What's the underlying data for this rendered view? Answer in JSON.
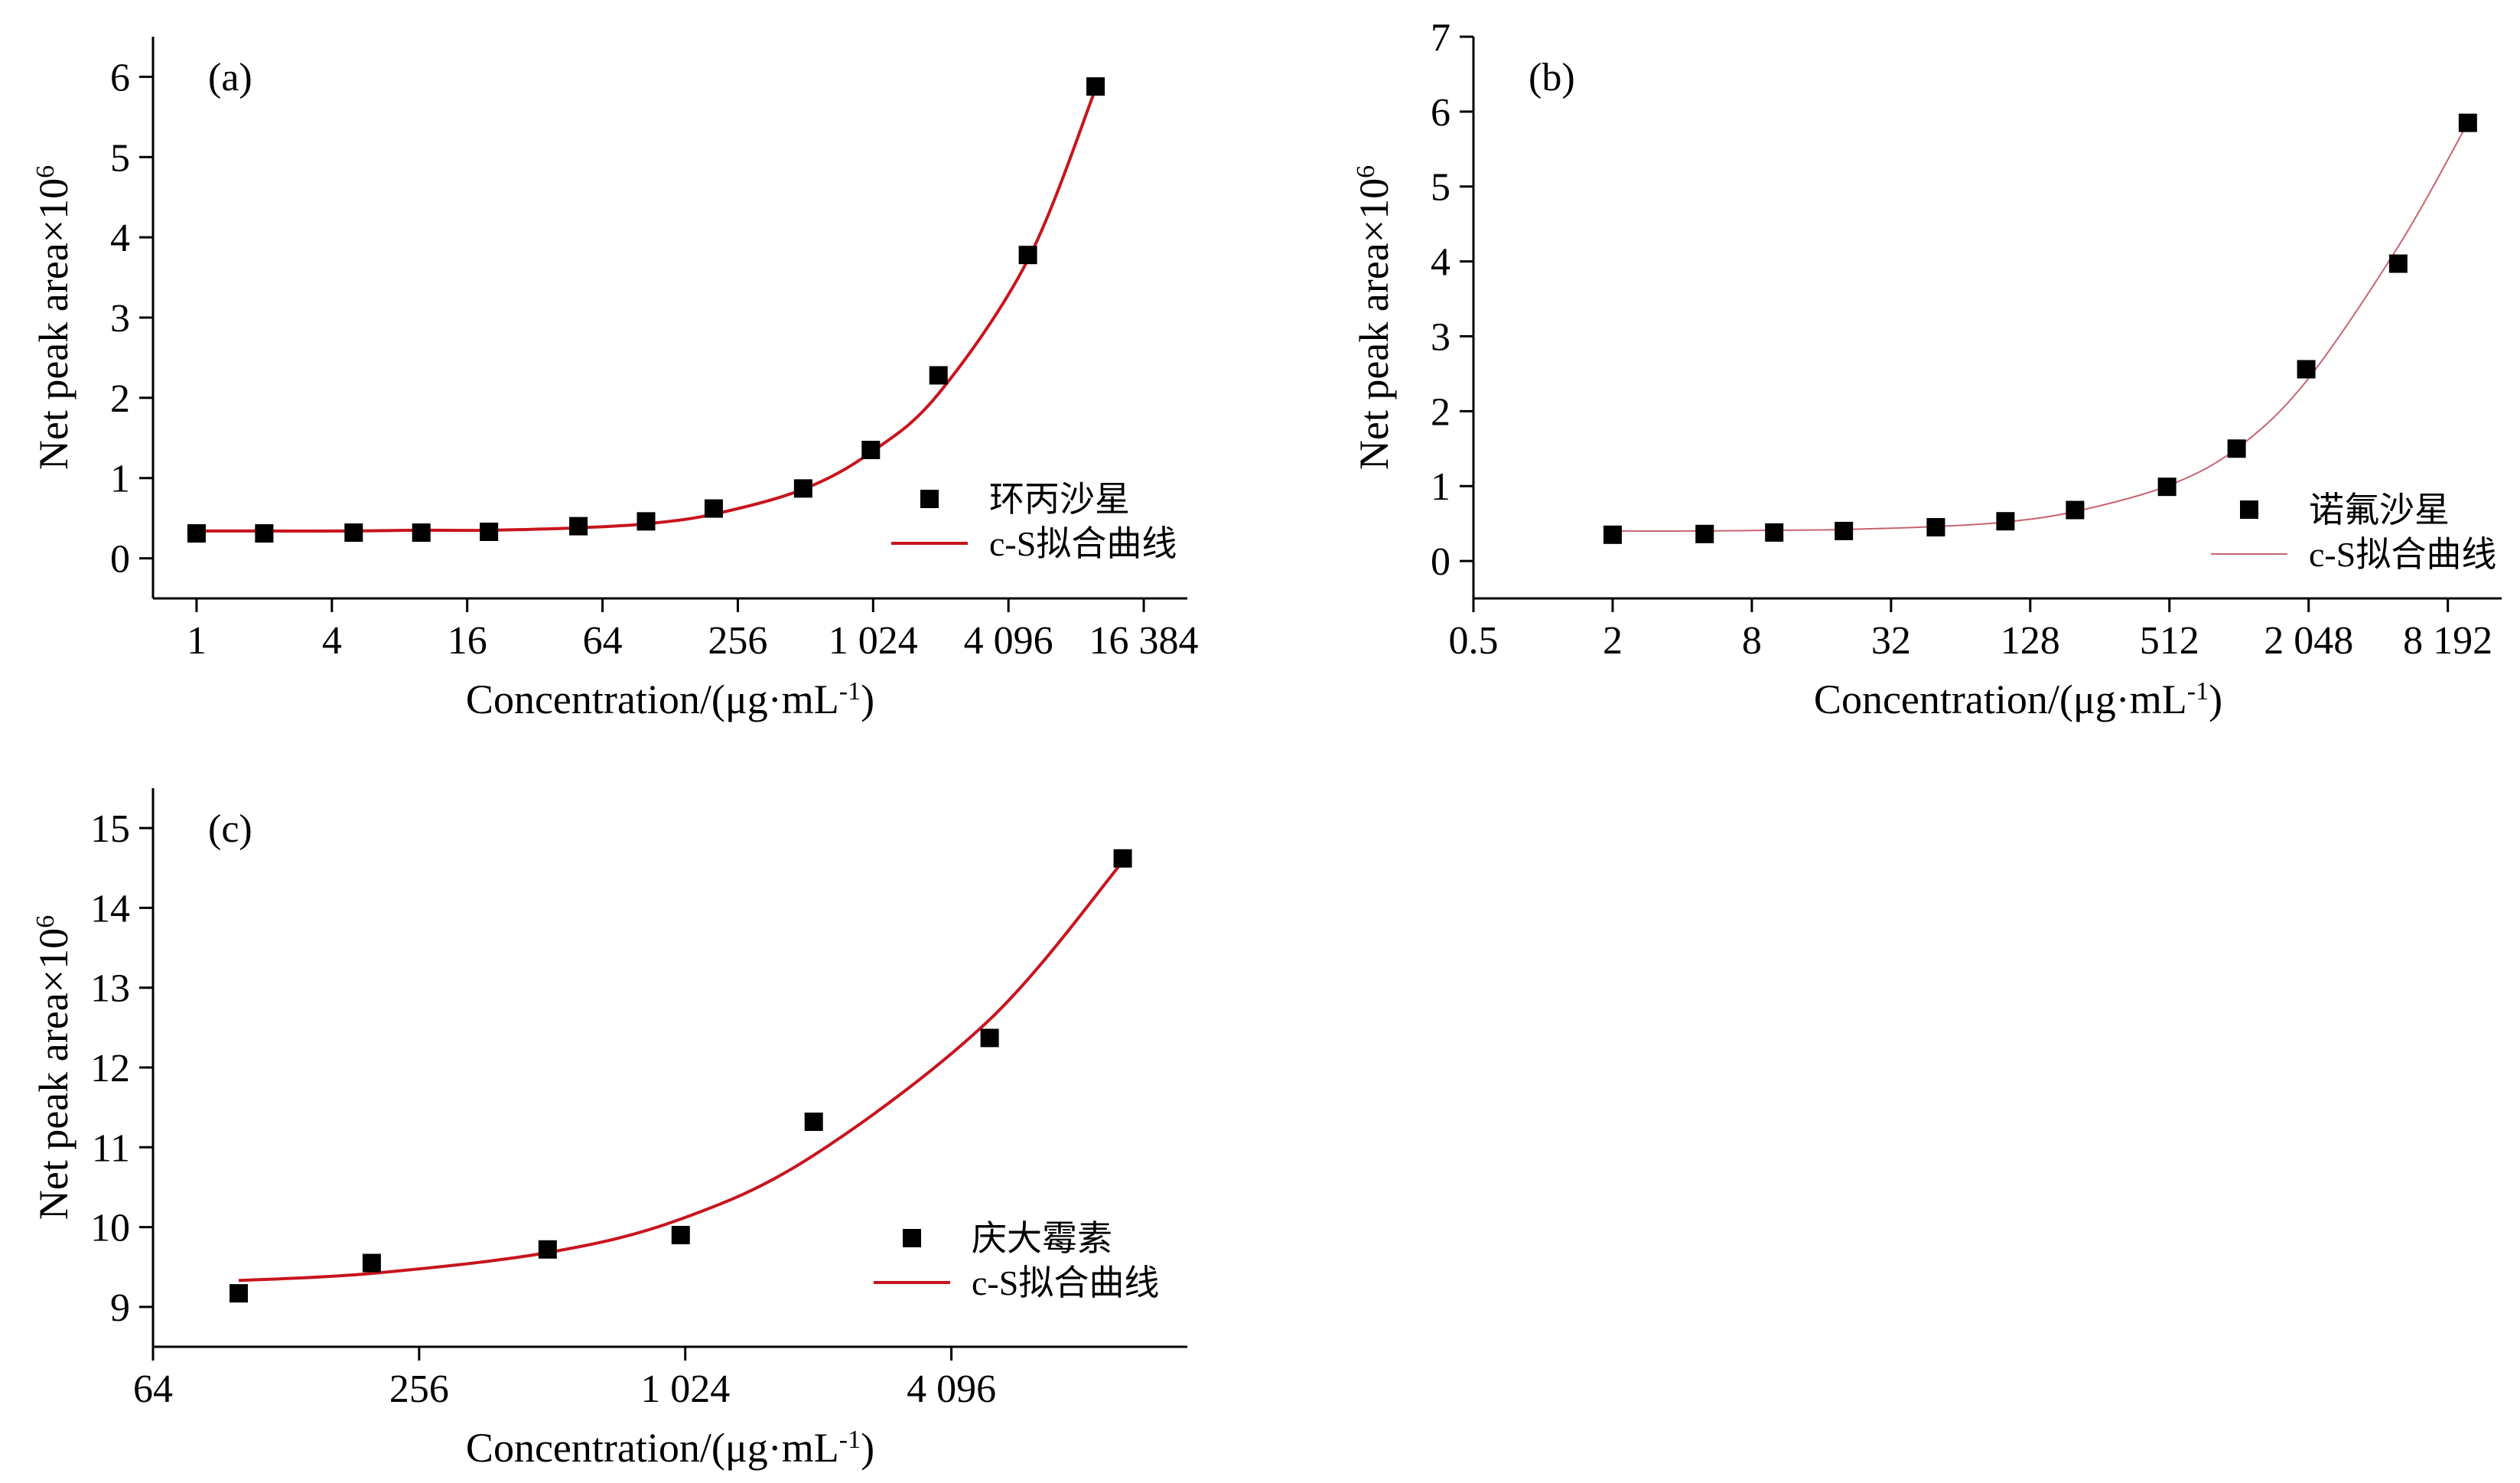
{
  "chart_data": [
    {
      "type": "scatter",
      "panel_label": "(a)",
      "xlabel": "Concentration/(μg·mL",
      "xlabel_sup": "-1",
      "xlabel_tail": ")",
      "ylabel": "Net peak area×10",
      "ylabel_sup": "6",
      "x_scale": "log2",
      "xlim": [
        0.64,
        25600
      ],
      "ylim": [
        -0.5,
        6.5
      ],
      "x_ticks": [
        1,
        4,
        16,
        64,
        256,
        1024,
        4096,
        16384
      ],
      "x_tick_labels": [
        "1",
        "4",
        "16",
        "64",
        "256",
        "1 024",
        "4 096",
        "16 384"
      ],
      "y_ticks": [
        0,
        1,
        2,
        3,
        4,
        5,
        6
      ],
      "y_tick_labels": [
        "0",
        "1",
        "2",
        "3",
        "4",
        "5",
        "6"
      ],
      "points": {
        "name": "环丙沙星",
        "x": [
          1,
          2,
          5,
          10,
          20,
          50,
          100,
          200,
          500,
          1000,
          2000,
          5000,
          10000
        ],
        "y": [
          0.31,
          0.31,
          0.32,
          0.32,
          0.33,
          0.4,
          0.46,
          0.62,
          0.87,
          1.35,
          2.28,
          3.78,
          5.88
        ]
      },
      "fit": {
        "name": "c-S拟合曲线",
        "x": [
          1,
          2,
          5,
          10,
          20,
          50,
          100,
          200,
          500,
          1000,
          2000,
          5000,
          10000
        ],
        "y": [
          0.34,
          0.34,
          0.34,
          0.35,
          0.35,
          0.38,
          0.43,
          0.55,
          0.86,
          1.32,
          2.05,
          3.72,
          5.85
        ]
      },
      "legend_position": "bottom-right",
      "series_color": "#c8141e",
      "grid": false
    },
    {
      "type": "scatter",
      "panel_label": "(b)",
      "xlabel": "Concentration/(μg·mL",
      "xlabel_sup": "-1",
      "xlabel_tail": ")",
      "ylabel": "Net peak area×10",
      "ylabel_sup": "6",
      "x_scale": "log2",
      "xlim": [
        0.5,
        14000
      ],
      "ylim": [
        -0.5,
        7
      ],
      "x_ticks": [
        0.5,
        2,
        8,
        32,
        128,
        512,
        2048,
        8192
      ],
      "x_tick_labels": [
        "0.5",
        "2",
        "8",
        "32",
        "128",
        "512",
        "2 048",
        "8 192"
      ],
      "y_ticks": [
        0,
        1,
        2,
        3,
        4,
        5,
        6,
        7
      ],
      "y_tick_labels": [
        "0",
        "1",
        "2",
        "3",
        "4",
        "5",
        "6",
        "7"
      ],
      "points": {
        "name": "诺氟沙星",
        "x": [
          2,
          5,
          10,
          20,
          50,
          100,
          200,
          500,
          1000,
          2000,
          5000,
          10000
        ],
        "y": [
          0.35,
          0.36,
          0.38,
          0.4,
          0.45,
          0.53,
          0.68,
          0.99,
          1.5,
          2.56,
          3.97,
          5.85
        ]
      },
      "fit": {
        "name": "c-S拟合曲线",
        "x": [
          2,
          5,
          10,
          20,
          50,
          100,
          200,
          500,
          1000,
          2000,
          5000,
          10000
        ],
        "y": [
          0.4,
          0.4,
          0.41,
          0.42,
          0.46,
          0.52,
          0.66,
          1.0,
          1.5,
          2.4,
          4.2,
          5.85
        ]
      },
      "legend_position": "bottom-right",
      "series_color": "#c86470",
      "grid": false
    },
    {
      "type": "scatter",
      "panel_label": "(c)",
      "xlabel": "Concentration/(μg·mL",
      "xlabel_sup": "-1",
      "xlabel_tail": ")",
      "ylabel": "Net peak area×10",
      "ylabel_sup": "6",
      "x_scale": "log2",
      "xlim": [
        64,
        14000
      ],
      "ylim": [
        8.5,
        15.5
      ],
      "x_ticks": [
        64,
        256,
        1024,
        4096
      ],
      "x_tick_labels": [
        "64",
        "256",
        "1 024",
        "4 096"
      ],
      "y_ticks": [
        9,
        10,
        11,
        12,
        13,
        14,
        15
      ],
      "y_tick_labels": [
        "9",
        "10",
        "11",
        "12",
        "13",
        "14",
        "15"
      ],
      "points": {
        "name": "庆大霉素",
        "x": [
          100,
          200,
          500,
          1000,
          2000,
          5000,
          10000
        ],
        "y": [
          9.17,
          9.55,
          9.72,
          9.9,
          11.32,
          12.37,
          14.62
        ]
      },
      "fit": {
        "name": "c-S拟合曲线",
        "x": [
          100,
          200,
          500,
          1000,
          2000,
          5000,
          10000
        ],
        "y": [
          9.33,
          9.42,
          9.68,
          10.1,
          10.9,
          12.6,
          14.58
        ]
      },
      "legend_position": "bottom-right",
      "series_color": "#c8141e",
      "grid": false
    }
  ]
}
